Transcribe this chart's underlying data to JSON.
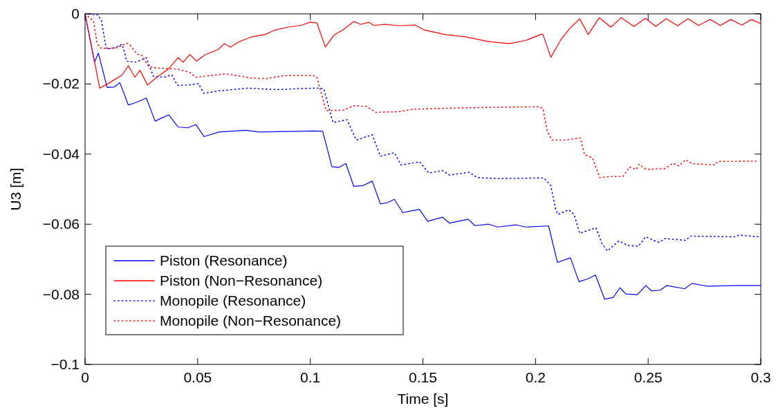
{
  "chart_data": {
    "type": "line",
    "xlabel": "Time [s]",
    "ylabel": "U3 [m]",
    "xlim": [
      0,
      0.3
    ],
    "xticks": [
      0,
      0.05,
      0.1,
      0.15,
      0.2,
      0.25,
      0.3
    ],
    "ylim": [
      -0.1,
      0
    ],
    "yticks": [
      -0.1,
      -0.08,
      -0.06,
      -0.04,
      -0.02,
      0
    ],
    "legend": "bottom left",
    "series": [
      {
        "name": "Piston (Resonance)",
        "color": "#0000ff",
        "line_style": "solid",
        "x": [
          0,
          0.0042,
          0.0059,
          0.0098,
          0.0129,
          0.0154,
          0.0192,
          0.0226,
          0.0272,
          0.0311,
          0.0334,
          0.0372,
          0.0413,
          0.0457,
          0.0492,
          0.0528,
          0.0595,
          0.0712,
          0.0774,
          0.1019,
          0.1055,
          0.1096,
          0.1127,
          0.1158,
          0.1193,
          0.1234,
          0.1275,
          0.1311,
          0.1342,
          0.1373,
          0.1411,
          0.1449,
          0.1485,
          0.1521,
          0.1587,
          0.1618,
          0.17,
          0.1731,
          0.1792,
          0.1833,
          0.1915,
          0.1956,
          0.2058,
          0.2097,
          0.2155,
          0.2193,
          0.2232,
          0.2266,
          0.2307,
          0.2345,
          0.2375,
          0.2401,
          0.2452,
          0.249,
          0.2514,
          0.2554,
          0.2582,
          0.2662,
          0.2695,
          0.2764,
          0.2887,
          0.3
        ],
        "values": [
          0,
          -0.0138,
          -0.0112,
          -0.021,
          -0.0209,
          -0.0196,
          -0.026,
          -0.0253,
          -0.024,
          -0.0306,
          -0.0299,
          -0.0288,
          -0.0323,
          -0.0325,
          -0.0316,
          -0.035,
          -0.0337,
          -0.0332,
          -0.0337,
          -0.0334,
          -0.0335,
          -0.0436,
          -0.0438,
          -0.0427,
          -0.0492,
          -0.049,
          -0.0477,
          -0.0542,
          -0.0539,
          -0.0529,
          -0.0567,
          -0.0562,
          -0.0558,
          -0.0592,
          -0.058,
          -0.0597,
          -0.0586,
          -0.0604,
          -0.06,
          -0.0608,
          -0.0602,
          -0.0608,
          -0.0605,
          -0.0709,
          -0.0696,
          -0.0764,
          -0.0756,
          -0.0745,
          -0.0814,
          -0.0809,
          -0.0781,
          -0.0799,
          -0.0801,
          -0.0775,
          -0.079,
          -0.0788,
          -0.0775,
          -0.0784,
          -0.0769,
          -0.0777,
          -0.0775,
          -0.0775
        ]
      },
      {
        "name": "Piston (Non−Resonance)",
        "color": "#ff0000",
        "line_style": "solid",
        "x": [
          0,
          0.0065,
          0.0108,
          0.0165,
          0.0192,
          0.0221,
          0.0244,
          0.0277,
          0.0318,
          0.0369,
          0.0413,
          0.0436,
          0.0465,
          0.0495,
          0.0533,
          0.059,
          0.0618,
          0.0646,
          0.0682,
          0.0738,
          0.0799,
          0.0845,
          0.0902,
          0.0958,
          0.0999,
          0.1029,
          0.1067,
          0.1106,
          0.1147,
          0.1193,
          0.1224,
          0.126,
          0.1281,
          0.1332,
          0.1393,
          0.1465,
          0.1506,
          0.1598,
          0.169,
          0.1792,
          0.1884,
          0.1956,
          0.2027,
          0.2033,
          0.2068,
          0.2114,
          0.215,
          0.2196,
          0.2234,
          0.2283,
          0.2334,
          0.238,
          0.2437,
          0.2488,
          0.2534,
          0.258,
          0.2631,
          0.2677,
          0.2723,
          0.2775,
          0.2821,
          0.2867,
          0.2916,
          0.2959,
          0.3
        ],
        "values": [
          0,
          -0.0212,
          -0.0197,
          -0.0174,
          -0.0148,
          -0.0181,
          -0.0161,
          -0.0203,
          -0.0181,
          -0.0158,
          -0.0125,
          -0.0138,
          -0.0116,
          -0.0135,
          -0.0117,
          -0.0102,
          -0.0085,
          -0.0095,
          -0.008,
          -0.0066,
          -0.0059,
          -0.0046,
          -0.0038,
          -0.0033,
          -0.0024,
          -0.0026,
          -0.0095,
          -0.006,
          -0.0045,
          -0.0022,
          -0.003,
          -0.0024,
          -0.0033,
          -0.003,
          -0.0034,
          -0.0032,
          -0.0046,
          -0.0059,
          -0.0066,
          -0.0079,
          -0.0085,
          -0.0076,
          -0.0058,
          -0.0059,
          -0.0124,
          -0.0072,
          -0.0043,
          -0.0014,
          -0.0059,
          -0.0011,
          -0.0038,
          -0.0011,
          -0.0036,
          -0.0013,
          -0.0036,
          -0.0014,
          -0.0034,
          -0.0014,
          -0.0033,
          -0.0016,
          -0.0033,
          -0.0016,
          -0.0032,
          -0.0016,
          -0.0028
        ]
      },
      {
        "name": "Monopile (Resonance)",
        "color": "#0000ff",
        "line_style": "dotted",
        "x": [
          0,
          0.0057,
          0.0073,
          0.009,
          0.0098,
          0.0129,
          0.0165,
          0.0185,
          0.0226,
          0.0272,
          0.0303,
          0.0349,
          0.0385,
          0.041,
          0.0457,
          0.0503,
          0.0528,
          0.059,
          0.0723,
          0.0845,
          0.1019,
          0.1045,
          0.106,
          0.1086,
          0.1101,
          0.1163,
          0.1204,
          0.1275,
          0.1311,
          0.1373,
          0.1403,
          0.1485,
          0.1526,
          0.1587,
          0.1618,
          0.1705,
          0.1741,
          0.1843,
          0.2037,
          0.2068,
          0.2089,
          0.2099,
          0.2148,
          0.2171,
          0.2196,
          0.2268,
          0.2294,
          0.2319,
          0.237,
          0.2411,
          0.2457,
          0.2488,
          0.2549,
          0.2575,
          0.2667,
          0.2687,
          0.2882,
          0.2907,
          0.2989
        ],
        "values": [
          0,
          -0.0003,
          -0.002,
          -0.0085,
          -0.0101,
          -0.0097,
          -0.0087,
          -0.0135,
          -0.0138,
          -0.0125,
          -0.0178,
          -0.0181,
          -0.0174,
          -0.0204,
          -0.0203,
          -0.0199,
          -0.0227,
          -0.022,
          -0.0212,
          -0.0216,
          -0.0212,
          -0.0212,
          -0.0214,
          -0.0276,
          -0.031,
          -0.0302,
          -0.036,
          -0.0345,
          -0.0406,
          -0.0396,
          -0.0431,
          -0.0422,
          -0.0454,
          -0.0447,
          -0.046,
          -0.0452,
          -0.0467,
          -0.047,
          -0.0468,
          -0.049,
          -0.0556,
          -0.0572,
          -0.0559,
          -0.0572,
          -0.0626,
          -0.061,
          -0.0654,
          -0.0676,
          -0.0648,
          -0.0661,
          -0.0663,
          -0.0636,
          -0.0652,
          -0.0641,
          -0.0646,
          -0.0634,
          -0.0636,
          -0.0631,
          -0.0636
        ]
      },
      {
        "name": "Monopile (Non−Resonance)",
        "color": "#ff0000",
        "line_style": "dotted",
        "x": [
          0,
          0.0037,
          0.0052,
          0.0065,
          0.0098,
          0.0139,
          0.0185,
          0.02,
          0.0231,
          0.0252,
          0.0282,
          0.0313,
          0.0364,
          0.0415,
          0.0467,
          0.0492,
          0.0625,
          0.0738,
          0.0804,
          0.0886,
          0.1014,
          0.1029,
          0.105,
          0.1071,
          0.1147,
          0.1193,
          0.125,
          0.1291,
          0.1393,
          0.1459,
          0.1679,
          0.2012,
          0.2033,
          0.2052,
          0.2073,
          0.213,
          0.2199,
          0.2217,
          0.2253,
          0.2285,
          0.2334,
          0.2388,
          0.2417,
          0.2447,
          0.2459,
          0.2493,
          0.2575,
          0.2611,
          0.2636,
          0.2667,
          0.2693,
          0.2795,
          0.281,
          0.2979
        ],
        "values": [
          0,
          -0.002,
          -0.0079,
          -0.0097,
          -0.0099,
          -0.0097,
          -0.0084,
          -0.0089,
          -0.0115,
          -0.0118,
          -0.015,
          -0.0154,
          -0.0156,
          -0.0158,
          -0.0168,
          -0.0181,
          -0.0171,
          -0.0183,
          -0.0185,
          -0.0176,
          -0.0176,
          -0.0181,
          -0.023,
          -0.0276,
          -0.0275,
          -0.0262,
          -0.0264,
          -0.0281,
          -0.0279,
          -0.0272,
          -0.0268,
          -0.0265,
          -0.027,
          -0.0335,
          -0.036,
          -0.036,
          -0.0354,
          -0.0401,
          -0.0411,
          -0.0467,
          -0.0464,
          -0.0464,
          -0.0437,
          -0.0444,
          -0.0429,
          -0.0444,
          -0.0441,
          -0.0426,
          -0.0434,
          -0.0416,
          -0.0427,
          -0.0431,
          -0.0421,
          -0.042
        ]
      }
    ]
  }
}
